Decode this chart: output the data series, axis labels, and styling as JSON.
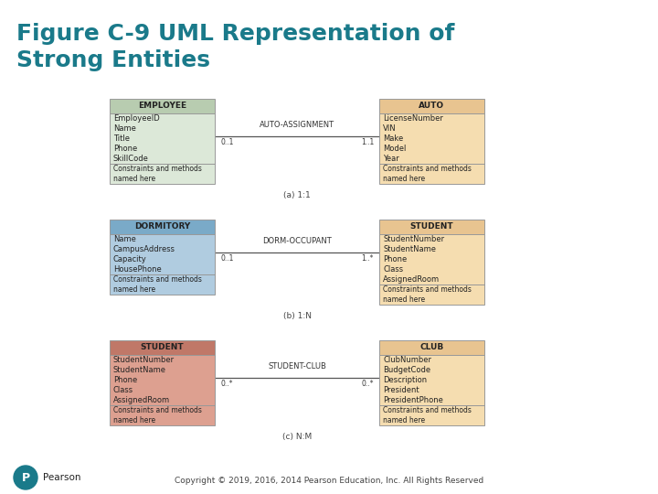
{
  "title": "Figure C-9 UML Representation of\nStrong Entities",
  "title_color": "#1a7a8a",
  "title_fontsize": 18,
  "background_color": "#ffffff",
  "copyright": "Copyright © 2019, 2016, 2014 Pearson Education, Inc. All Rights Reserved",
  "diagrams": [
    {
      "label": "(a) 1:1",
      "relation_label": "AUTO-ASSIGNMENT",
      "left_mult": "0..1",
      "right_mult": "1..1",
      "left": {
        "title": "EMPLOYEE",
        "title_bg": "#b8ccb0",
        "body_bg": "#dce8d8",
        "attrs": [
          "EmployeeID",
          "Name",
          "Title",
          "Phone",
          "SkillCode"
        ],
        "method": "Constraints and methods\nnamed here"
      },
      "right": {
        "title": "AUTO",
        "title_bg": "#e8c490",
        "body_bg": "#f5ddb0",
        "attrs": [
          "LicenseNumber",
          "VIN",
          "Make",
          "Model",
          "Year"
        ],
        "method": "Constraints and methods\nnamed here"
      }
    },
    {
      "label": "(b) 1:N",
      "relation_label": "DORM-OCCUPANT",
      "left_mult": "0..1",
      "right_mult": "1..*",
      "left": {
        "title": "DORMITORY",
        "title_bg": "#7aaac8",
        "body_bg": "#b0cce0",
        "attrs": [
          "Name",
          "CampusAddress",
          "Capacity",
          "HousePhone"
        ],
        "method": "Constraints and methods\nnamed here"
      },
      "right": {
        "title": "STUDENT",
        "title_bg": "#e8c490",
        "body_bg": "#f5ddb0",
        "attrs": [
          "StudentNumber",
          "StudentName",
          "Phone",
          "Class",
          "AssignedRoom"
        ],
        "method": "Constraints and methods\nnamed here"
      }
    },
    {
      "label": "(c) N:M",
      "relation_label": "STUDENT-CLUB",
      "left_mult": "0..*",
      "right_mult": "0..*",
      "left": {
        "title": "STUDENT",
        "title_bg": "#c07868",
        "body_bg": "#dda090",
        "attrs": [
          "StudentNumber",
          "StudentName",
          "Phone",
          "Class",
          "AssignedRoom"
        ],
        "method": "Constraints and methods\nnamed here"
      },
      "right": {
        "title": "CLUB",
        "title_bg": "#e8c490",
        "body_bg": "#f5ddb0",
        "attrs": [
          "ClubNumber",
          "BudgetCode",
          "Description",
          "President",
          "PresidentPhone"
        ],
        "method": "Constraints and methods\nnamed here"
      }
    }
  ]
}
